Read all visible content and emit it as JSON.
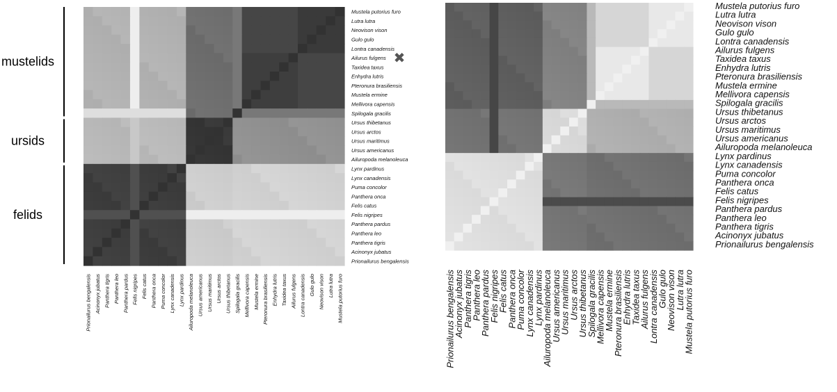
{
  "chart_data": [
    {
      "type": "heatmap",
      "group_labels": [
        {
          "label": "mustelids",
          "from": 0,
          "to": 11
        },
        {
          "label": "ursids",
          "from": 12,
          "to": 16
        },
        {
          "label": "felids",
          "from": 17,
          "to": 27
        }
      ],
      "row_labels": [
        "Mustela putorius furo",
        "Lutra lutra",
        "Neovison vison",
        "Gulo gulo",
        "Lontra canadensis",
        "Ailurus fulgens",
        "Taxidea taxus",
        "Enhydra lutris",
        "Pteronura brasiliensis",
        "Mustela ermine",
        "Mellivora capensis",
        "Spilogala gracilis",
        "Ursus thibetanus",
        "Ursus arctos",
        "Ursus maritimus",
        "Ursus americanus",
        "Ailuropoda melanoleuca",
        "Lynx pardinus",
        "Lynx canadensis",
        "Puma concolor",
        "Panthera onca",
        "Felis catus",
        "Felis nigripes",
        "Panthera pardus",
        "Panthera leo",
        "Panthera tigris",
        "Acinonyx jubatus",
        "Prionailurus bengalensis"
      ],
      "col_labels": [
        "Prionailurus bengalensis",
        "Acinonyx jubatus",
        "Panthera tigris",
        "Panthera leo",
        "Panthera pardus",
        "Felis nigripes",
        "Felis catus",
        "Panthera onca",
        "Puma concolor",
        "Lynx canadensis",
        "Lynx pardinus",
        "Ailuropoda melanoleuca",
        "Ursus americanus",
        "Ursus maritimus",
        "Ursus arctos",
        "Ursus thibetanus",
        "Spilogala gracilis",
        "Mellivora capensis",
        "Mustela ermine",
        "Pteronura brasiliensis",
        "Enhydra lutris",
        "Taxidea taxus",
        "Ailurus fulgens",
        "Lontra canadensis",
        "Gulo gulo",
        "Neovison vison",
        "Lutra lutra",
        "Mustela putorius furo"
      ],
      "marker": {
        "symbol": "✖",
        "row": "Ailurus fulgens"
      }
    },
    {
      "type": "heatmap",
      "row_labels": [
        "Mustela putorius furo",
        "Lutra lutra",
        "Neovison vison",
        "Gulo gulo",
        "Lontra canadensis",
        "Ailurus fulgens",
        "Taxidea taxus",
        "Enhydra lutris",
        "Pteronura brasiliensis",
        "Mustela ermine",
        "Mellivora capensis",
        "Spilogala gracilis",
        "Ursus thibetanus",
        "Ursus arctos",
        "Ursus maritimus",
        "Ursus americanus",
        "Ailuropoda melanoleuca",
        "Lynx pardinus",
        "Lynx canadensis",
        "Puma concolor",
        "Panthera onca",
        "Felis catus",
        "Felis nigripes",
        "Panthera pardus",
        "Panthera leo",
        "Panthera tigris",
        "Acinonyx jubatus",
        "Prionailurus bengalensis"
      ],
      "col_labels": [
        "Prionailurus bengalensis",
        "Acinonyx jubatus",
        "Panthera tigris",
        "Panthera leo",
        "Panthera pardus",
        "Felis nigripes",
        "Felis catus",
        "Panthera onca",
        "Puma concolor",
        "Lynx canadensis",
        "Lynx pardinus",
        "Ailuropoda melanoleuca",
        "Ursus americanus",
        "Ursus maritimus",
        "Ursus arctos",
        "Ursus thibetanus",
        "Spilogala gracilis",
        "Mellivora capensis",
        "Mustela ermine",
        "Pteronura brasiliensis",
        "Enhydra lutris",
        "Taxidea taxus",
        "Ailurus fulgens",
        "Lontra canadensis",
        "Gulo gulo",
        "Neovison vison",
        "Lutra lutra",
        "Mustela putorius furo"
      ]
    }
  ]
}
